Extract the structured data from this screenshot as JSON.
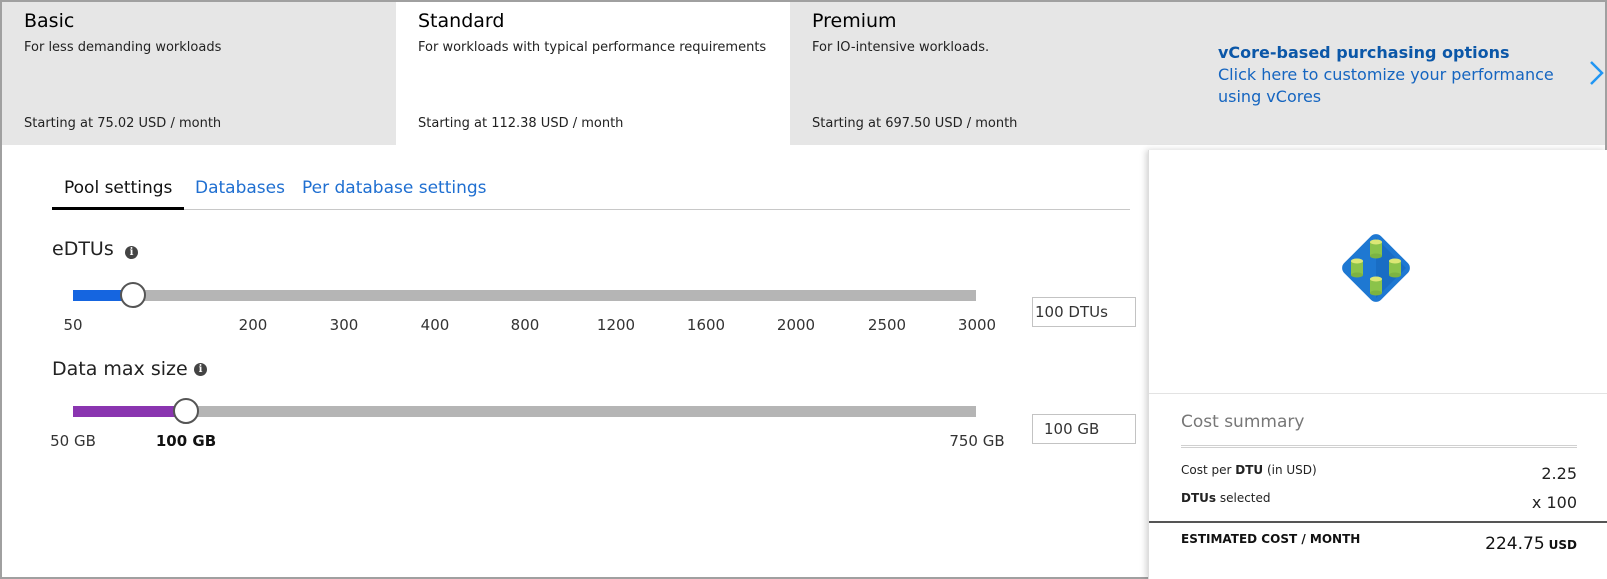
{
  "tiers": [
    {
      "name": "Basic",
      "description": "For less demanding workloads",
      "price": "Starting at 75.02 USD / month",
      "selected": false
    },
    {
      "name": "Standard",
      "description": "For workloads with typical performance requirements",
      "price": "Starting at 112.38 USD / month",
      "selected": true
    },
    {
      "name": "Premium",
      "description": "For IO-intensive workloads.",
      "price": "Starting at 697.50 USD / month",
      "selected": false
    }
  ],
  "vcore": {
    "title": "vCore-based purchasing options",
    "link_text": "Click here to customize your performance using vCores",
    "icon": "chevron-right-icon"
  },
  "tabs": [
    {
      "label": "Pool settings",
      "active": true
    },
    {
      "label": "Databases",
      "active": false
    },
    {
      "label": "Per database settings",
      "active": false
    }
  ],
  "edtus": {
    "label": "eDTUs",
    "ticks": [
      "50",
      "200",
      "300",
      "400",
      "800",
      "1200",
      "1600",
      "2000",
      "2500",
      "3000"
    ],
    "selected_value": 100,
    "value_box": "100 DTUs",
    "fill_color": "#1565e0"
  },
  "data_max_size": {
    "label": "Data max size",
    "min_label": "50 GB",
    "selected_label": "100 GB",
    "max_label": "750 GB",
    "selected_value_gb": 100,
    "value_box": "100 GB",
    "fill_color": "#8a35b0"
  },
  "summary": {
    "icon": "elastic-pool-icon",
    "title": "Cost summary",
    "row1_prefix": "Cost per ",
    "row1_bold": "DTU",
    "row1_suffix": " (in USD)",
    "row1_value": "2.25",
    "row2_bold": "DTUs",
    "row2_suffix": " selected",
    "row2_value": "x 100",
    "total_label": "ESTIMATED COST / MONTH",
    "total_value": "224.75",
    "total_unit": "USD"
  }
}
